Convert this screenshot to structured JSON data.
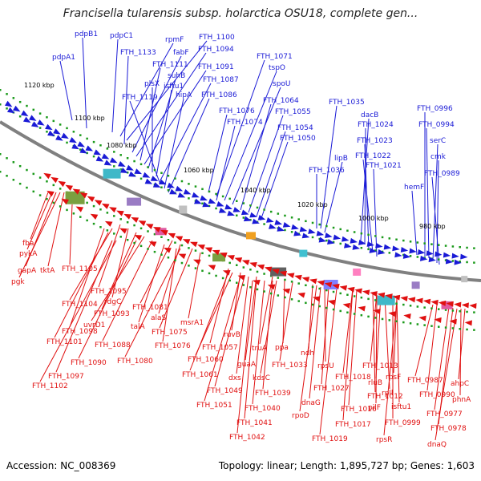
{
  "title": "Francisella tularensis subsp. holarctica OSU18, complete gen...",
  "footer": {
    "accession": "Accession: NC_008369",
    "summary": "Topology: linear; Length: 1,895,727 bp; Genes: 1,603"
  },
  "colors": {
    "forward_strand": "#1a1ad6",
    "reverse_strand": "#e01010",
    "backbone": "#808080",
    "tick_dots": "#1a9a1a"
  },
  "scale_labels": [
    "1120 kbp",
    "1100 kbp",
    "1080 kbp",
    "1060 kbp",
    "1040 kbp",
    "1020 kbp",
    "1000 kbp",
    "980 kbp"
  ],
  "forward_genes": [
    "pdpB1",
    "pdpC1",
    "pdpA1",
    "rpmF",
    "FTH_1100",
    "FTH_1133",
    "fabF",
    "FTH_1094",
    "FTH_1111",
    "FTH_1091",
    "suhB",
    "plsX",
    "isftu1",
    "FTH_1087",
    "FTH_1119",
    "hipA",
    "FTH_1086",
    "FTH_1071",
    "tspO",
    "spoU",
    "FTH_1064",
    "FTH_1076",
    "FTH_1055",
    "FTH_1074",
    "FTH_1054",
    "FTH_1050",
    "FTH_1035",
    "dacB",
    "FTH_1024",
    "FTH_1023",
    "lipB",
    "FTH_1022",
    "FTH_1036",
    "FTH_1021",
    "FTH_0996",
    "FTH_0994",
    "serC",
    "cmk",
    "hemF",
    "FTH_0989"
  ],
  "reverse_genes": [
    "fba",
    "pykA",
    "gapA",
    "tktA",
    "pgk",
    "FTH_1105",
    "FTH_1095",
    "FTH_1104",
    "rdgC",
    "FTH_1093",
    "FTH_1098",
    "uvrD1",
    "FTH_1101",
    "FTH_1081",
    "alaS",
    "talA",
    "FTH_1075",
    "msrA1",
    "FTH_1088",
    "FTH_1076",
    "FTH_1090",
    "FTH_1080",
    "FTH_1097",
    "FTH_1102",
    "ruvB",
    "FTH_1057",
    "truA",
    "ppa",
    "FTH_1060",
    "guaA",
    "FTH_1061",
    "dxs",
    "kdsC",
    "FTH_1033",
    "ndh",
    "rpsU",
    "FTH_1013",
    "FTH_1018",
    "rluB",
    "rpsF",
    "FTH_1049",
    "FTH_1039",
    "FTH_1027",
    "dnaG",
    "FTH_1012",
    "rpll",
    "FTH_1051",
    "FTH_1040",
    "FTH_1016",
    "pilF",
    "isftu1",
    "FTH_1041",
    "rpoD",
    "FTH_1017",
    "FTH_0999",
    "FTH_1042",
    "FTH_1019",
    "rpsR",
    "FTH_0987",
    "ahpC",
    "FTH_0990",
    "phnA",
    "FTH_0977",
    "FTH_0978",
    "dnaQ"
  ]
}
